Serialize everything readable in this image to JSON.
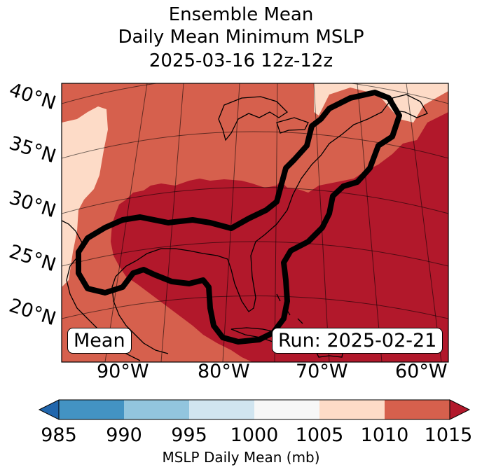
{
  "title": {
    "line1": "Ensemble Mean",
    "line2": "Daily Mean Minimum MSLP",
    "line3": "2025-03-16 12z-12z"
  },
  "map": {
    "lat_labels": [
      "40°N",
      "35°N",
      "30°N",
      "25°N",
      "20°N"
    ],
    "lon_labels": [
      "90°W",
      "80°W",
      "70°W",
      "60°W"
    ],
    "mean_label": "Mean",
    "run_label": "Run: 2025-02-21",
    "contour_color": "#000000"
  },
  "colorbar": {
    "label": "MSLP Daily Mean (mb)",
    "ticks": [
      "985",
      "990",
      "995",
      "1000",
      "1005",
      "1010",
      "1015"
    ],
    "colors": [
      "#2166ac",
      "#4393c3",
      "#92c5de",
      "#d1e5f0",
      "#f7f7f7",
      "#fddbc7",
      "#d6604d",
      "#b2182b"
    ],
    "extend": "both"
  }
}
